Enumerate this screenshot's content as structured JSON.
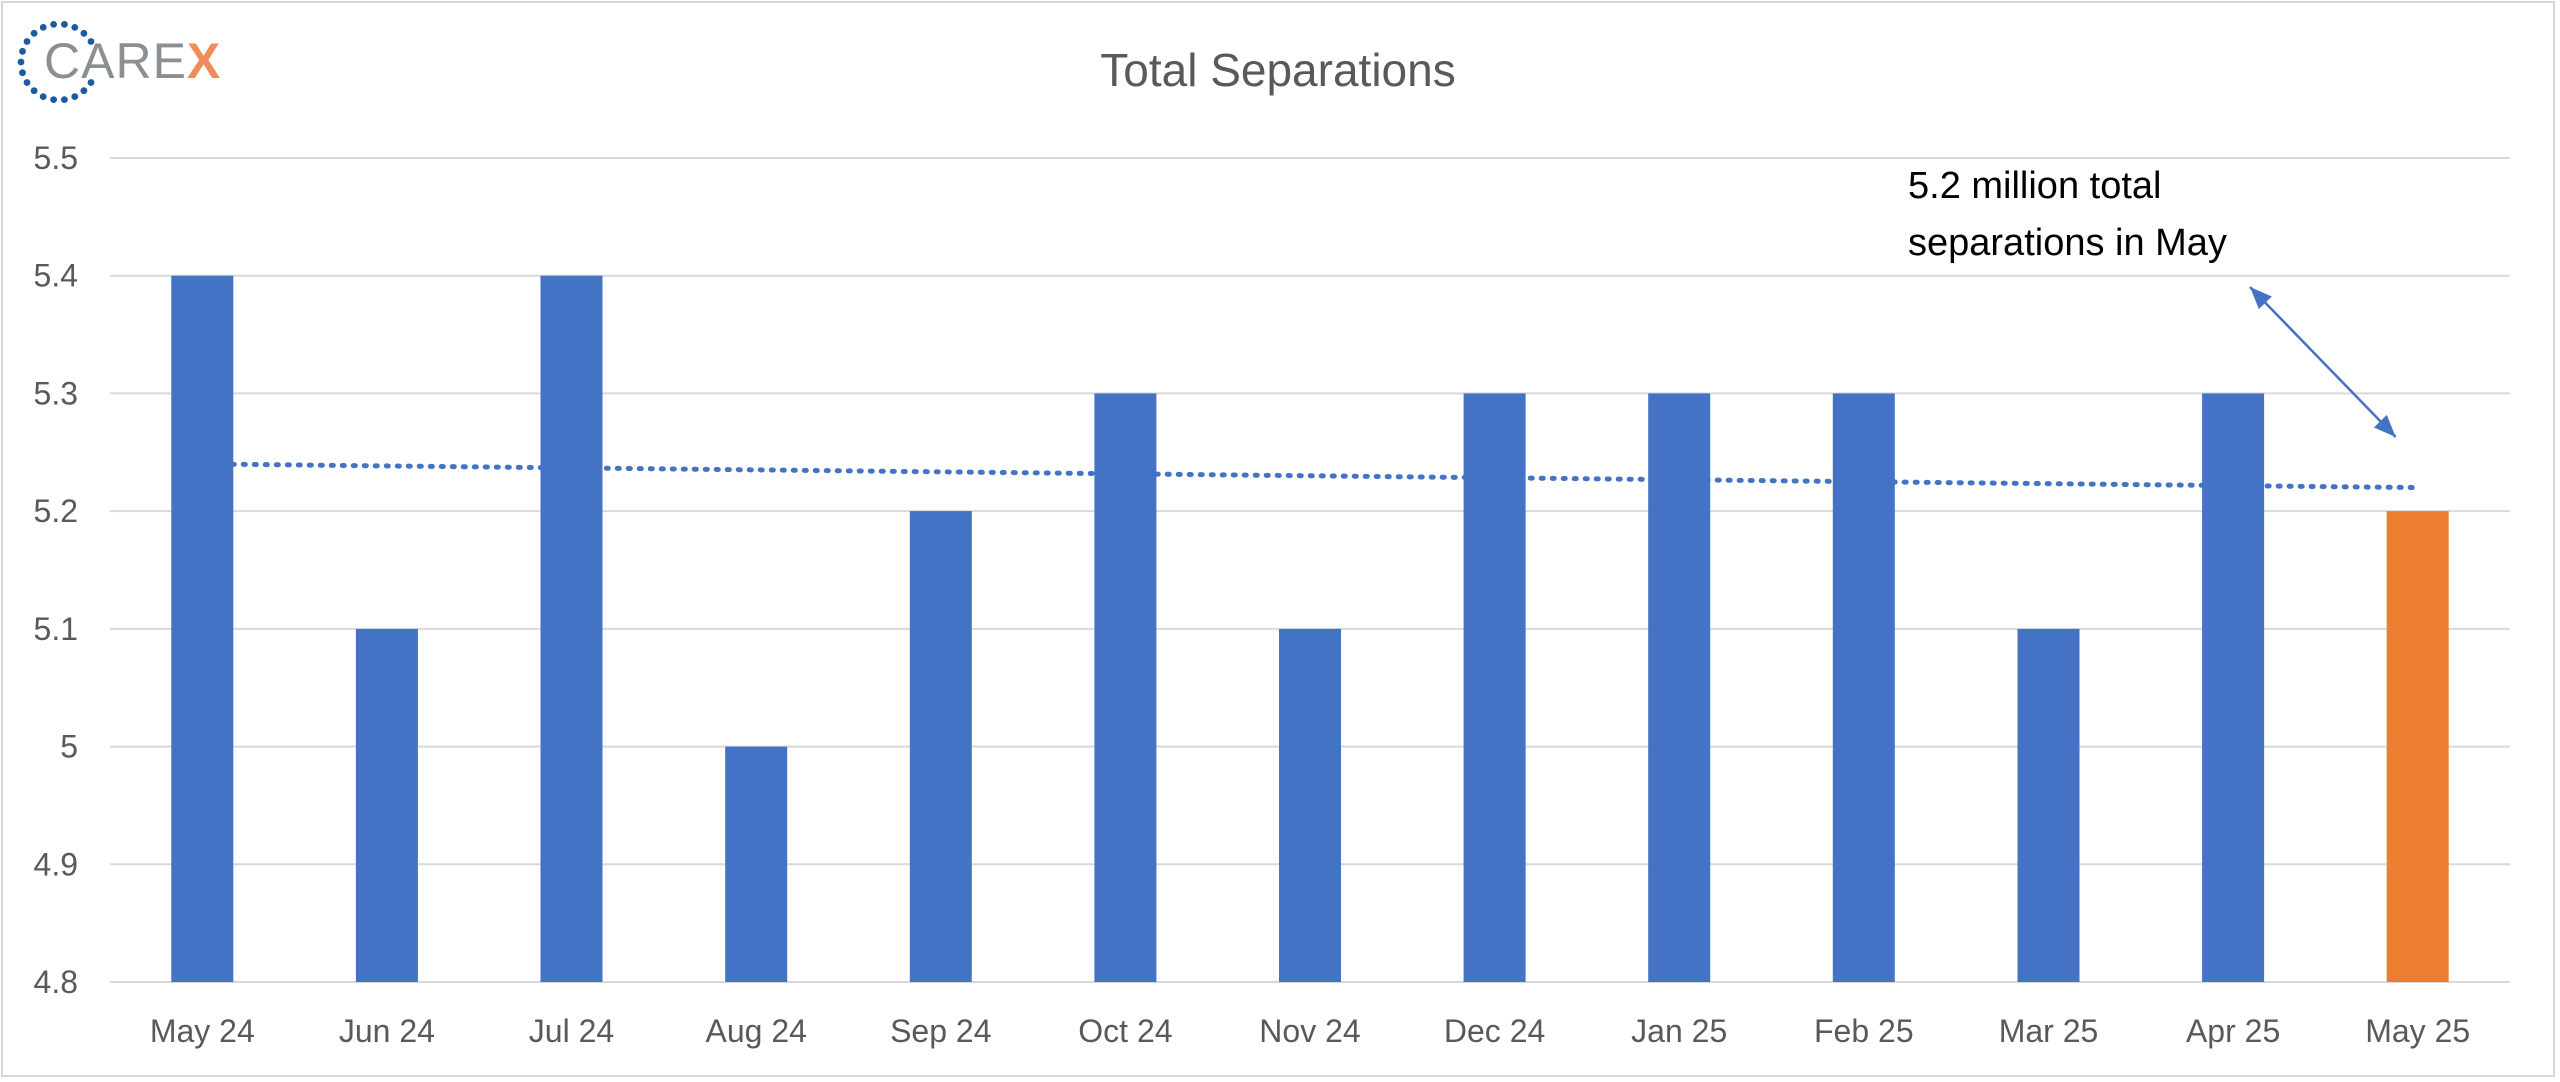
{
  "logo": {
    "text_main": "CARE",
    "text_accent": "X",
    "text_color": "#8a8f94",
    "accent_color": "#f08b5a",
    "dot_color": "#1f5a9e"
  },
  "chart_data": {
    "type": "bar",
    "title": "Total Separations",
    "xlabel": "",
    "ylabel": "",
    "categories": [
      "May 24",
      "Jun 24",
      "Jul 24",
      "Aug 24",
      "Sep 24",
      "Oct 24",
      "Nov 24",
      "Dec 24",
      "Jan 25",
      "Feb 25",
      "Mar 25",
      "Apr 25",
      "May 25"
    ],
    "values": [
      5.4,
      5.1,
      5.4,
      5.0,
      5.2,
      5.3,
      5.1,
      5.3,
      5.3,
      5.3,
      5.1,
      5.3,
      5.2
    ],
    "highlight_index": 12,
    "bar_color": "#4472c4",
    "highlight_color": "#ed7d31",
    "ylim": [
      4.8,
      5.5
    ],
    "yticks": [
      "4.8",
      "4.9",
      "5",
      "5.1",
      "5.2",
      "5.3",
      "5.4",
      "5.5"
    ],
    "grid": true,
    "legend": "none",
    "trendline": {
      "type": "linear",
      "style": "dotted",
      "color": "#4472c4",
      "start_value": 5.24,
      "end_value": 5.22
    },
    "annotation": {
      "lines": [
        "5.2 million total",
        "separations in May"
      ],
      "target_category": "May 25"
    }
  }
}
